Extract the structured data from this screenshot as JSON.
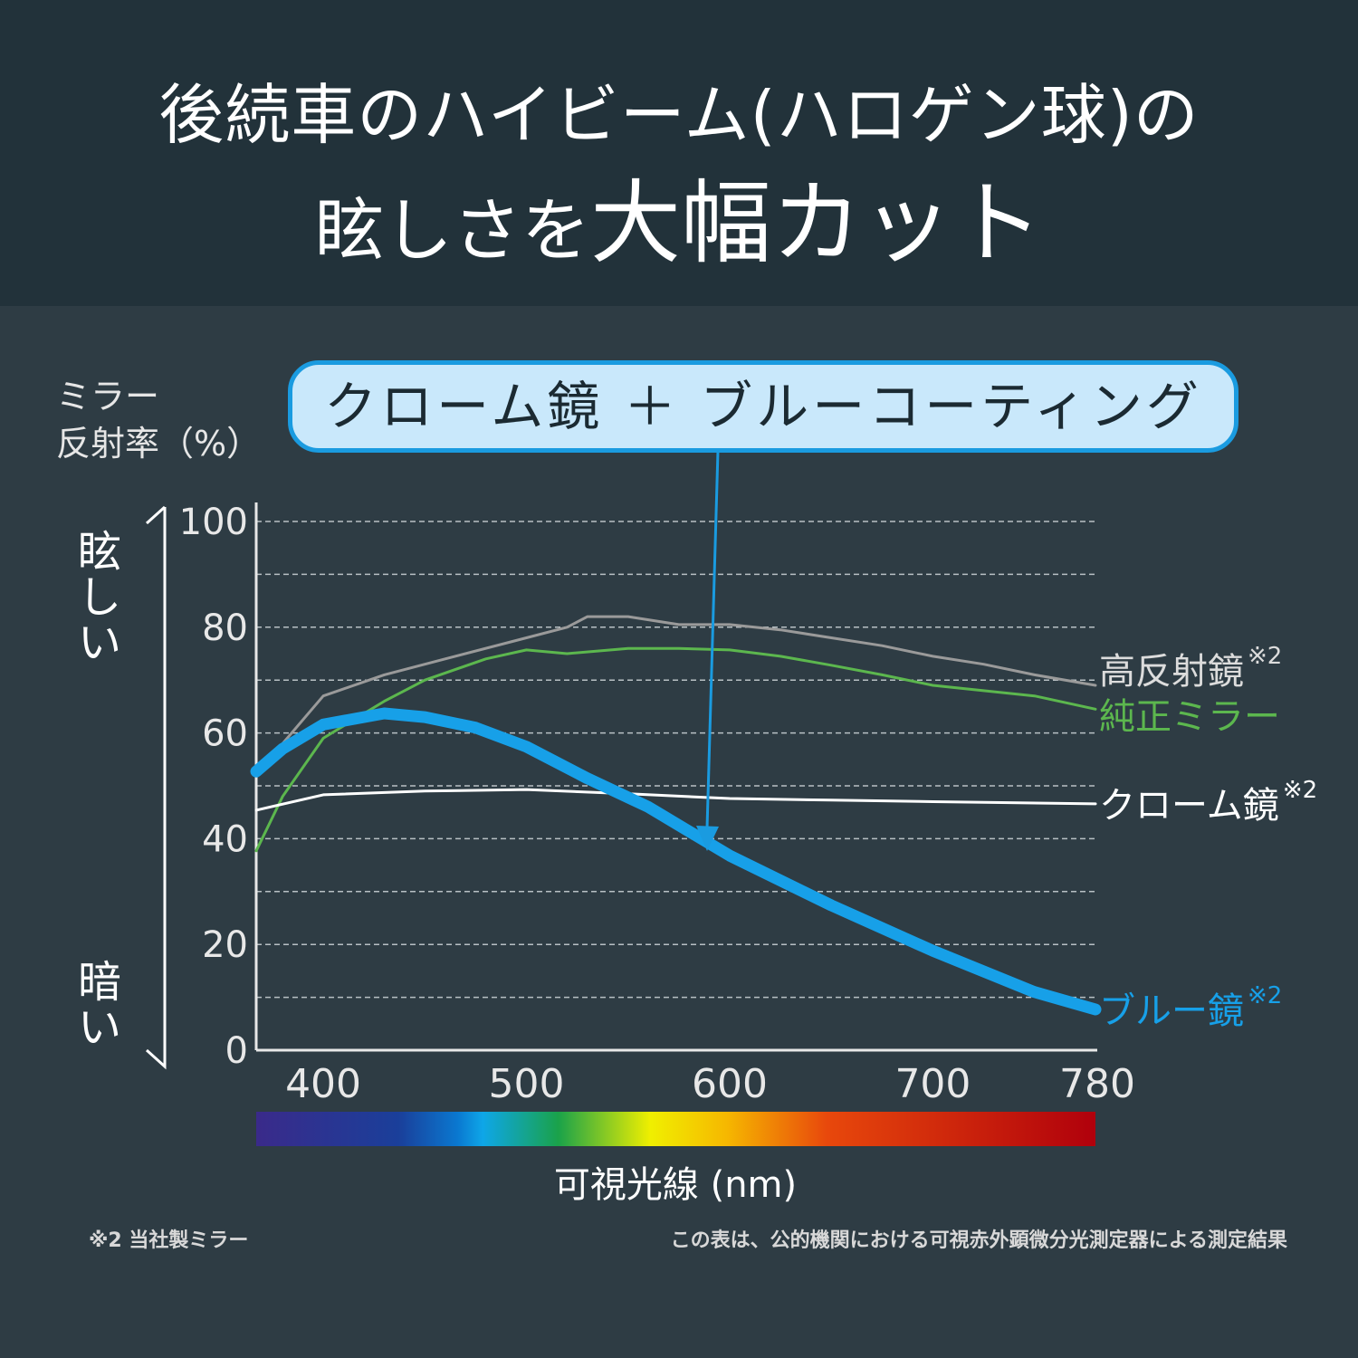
{
  "header": {
    "line1": "後続車のハイビーム(ハロゲン球)の",
    "line2_prefix": "眩しさを",
    "line2_emph": "大幅カット"
  },
  "callout": {
    "text": "クローム鏡 ＋ ブルーコーティング",
    "border_color": "#1a9be0",
    "fill_color": "#c9e8fb"
  },
  "side": {
    "bright": "眩しい",
    "dark": "暗い"
  },
  "footnotes": {
    "left": "※2 当社製ミラー",
    "right": "この表は、公的機関における可視赤外顕微分光測定器による測定結果"
  },
  "chart_data": {
    "type": "line",
    "ylabel_line1": "ミラー",
    "ylabel_line2": "反射率（%）",
    "xlabel": "可視光線 (nm)",
    "xlim": [
      367,
      780
    ],
    "ylim": [
      0,
      100
    ],
    "xticks": [
      400,
      500,
      600,
      700,
      780
    ],
    "yticks": [
      0,
      20,
      40,
      60,
      80,
      100
    ],
    "grid": true,
    "spectrum_bar": true,
    "series": [
      {
        "name": "高反射鏡",
        "note": "※2",
        "color": "#9a9a9a",
        "width": 3,
        "x": [
          367,
          380,
          400,
          430,
          460,
          500,
          520,
          530,
          550,
          575,
          600,
          625,
          650,
          675,
          700,
          725,
          750,
          780
        ],
        "y": [
          52,
          58,
          67,
          71,
          74,
          78,
          80,
          82,
          82,
          80.5,
          80.5,
          79.5,
          78,
          76.5,
          74.5,
          73,
          71,
          69
        ]
      },
      {
        "name": "純正ミラー",
        "note": "",
        "color": "#5cb74e",
        "width": 3,
        "x": [
          367,
          380,
          400,
          430,
          450,
          480,
          500,
          520,
          550,
          575,
          600,
          625,
          650,
          675,
          700,
          725,
          750,
          780
        ],
        "y": [
          37.7,
          48,
          59,
          66,
          70,
          74,
          75.7,
          75,
          76,
          76,
          75.7,
          74.5,
          72.8,
          71,
          69,
          68,
          67,
          64.5
        ]
      },
      {
        "name": "クローム鏡",
        "note": "※2",
        "color": "#ffffff",
        "width": 3,
        "x": [
          367,
          400,
          450,
          500,
          550,
          600,
          650,
          700,
          780
        ],
        "y": [
          45.4,
          48.3,
          49,
          49.3,
          48.5,
          47.6,
          47.3,
          47,
          46.6
        ]
      },
      {
        "name": "ブルー鏡",
        "note": "※2",
        "color": "#17a0e8",
        "width": 13,
        "x": [
          367,
          380,
          400,
          430,
          450,
          475,
          500,
          530,
          560,
          600,
          650,
          700,
          750,
          780
        ],
        "y": [
          52.7,
          57,
          61.6,
          63.7,
          63,
          61,
          57.4,
          51.4,
          46,
          36.8,
          27.4,
          18.8,
          11,
          7.7
        ]
      }
    ],
    "annotation_arrow": {
      "from": "callout",
      "to_series": "ブルー鏡",
      "x": 590
    }
  }
}
